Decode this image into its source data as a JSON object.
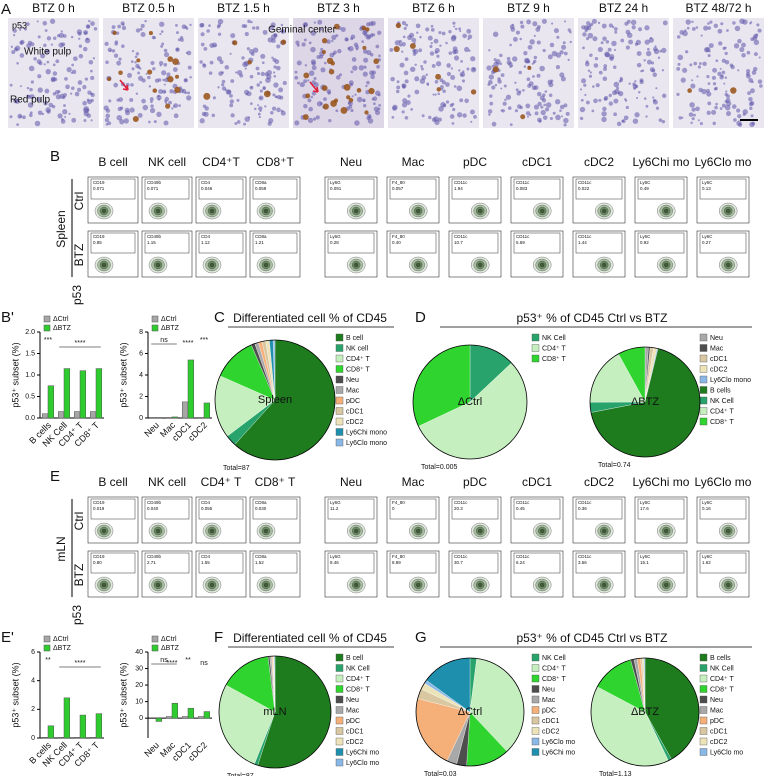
{
  "panel_a": {
    "letter": "A",
    "stain": "p53",
    "times": [
      "BTZ 0 h",
      "BTZ 0.5 h",
      "BTZ 1.5 h",
      "BTZ 3 h",
      "BTZ 6 h",
      "BTZ 9 h",
      "BTZ 24 h",
      "BTZ 48/72 h"
    ],
    "white_pulp": "White pulp",
    "red_pulp": "Red pulp",
    "germinal_center": "Geminal center"
  },
  "panel_b": {
    "letter": "B",
    "tissue": "Spleen",
    "marker": "p53",
    "rows": [
      "Ctrl",
      "BTZ"
    ],
    "populations": [
      {
        "name": "B cell",
        "gate": "CD19",
        "ctrl": "0.071",
        "btz": "0.85"
      },
      {
        "name": "NK cell",
        "gate": "CD49b",
        "ctrl": "0.071",
        "btz": "1.15"
      },
      {
        "name": "CD4⁺T",
        "gate": "CD4",
        "ctrl": "0.046",
        "btz": "1.12"
      },
      {
        "name": "CD8⁺T",
        "gate": "CD8a",
        "ctrl": "0.059",
        "btz": "1.21"
      },
      {
        "name": "Neu",
        "gate": "Ly6G",
        "ctrl": "0.091",
        "btz": "0.28"
      },
      {
        "name": "Mac",
        "gate": "F4_80",
        "ctrl": "0.057",
        "btz": "0.40"
      },
      {
        "name": "pDC",
        "gate": "CD11c",
        "ctrl": "1.94",
        "btz": "10.7"
      },
      {
        "name": "cDC1",
        "gate": "CD11c",
        "ctrl": "0.083",
        "btz": "5.69"
      },
      {
        "name": "cDC2",
        "gate": "CD11c",
        "ctrl": "0.022",
        "btz": "1.44"
      },
      {
        "name": "Ly6Chi mo",
        "gate": "Ly6C",
        "ctrl": "0.49",
        "btz": "0.92"
      },
      {
        "name": "Ly6Clo mo",
        "gate": "Ly6C",
        "ctrl": "0.13",
        "btz": "0.27"
      }
    ]
  },
  "panel_e": {
    "letter": "E",
    "tissue": "mLN",
    "marker": "p53",
    "rows": [
      "Ctrl",
      "BTZ"
    ],
    "populations": [
      {
        "name": "B cell",
        "gate": "CD19",
        "ctrl": "0.019",
        "btz": "0.80"
      },
      {
        "name": "NK cell",
        "gate": "CD49b",
        "ctrl": "0.040",
        "btz": "2.71"
      },
      {
        "name": "CD4⁺ T",
        "gate": "CD4",
        "ctrl": "0.055",
        "btz": "1.55"
      },
      {
        "name": "CD8⁺ T",
        "gate": "CD8a",
        "ctrl": "0.030",
        "btz": "1.52"
      },
      {
        "name": "Neu",
        "gate": "Ly6G",
        "ctrl": "11.2",
        "btz": "8.46"
      },
      {
        "name": "Mac",
        "gate": "F4_80",
        "ctrl": "0",
        "btz": "8.89"
      },
      {
        "name": "pDC",
        "gate": "CD11c",
        "ctrl": "20.3",
        "btz": "30.7"
      },
      {
        "name": "cDC1",
        "gate": "CD11c",
        "ctrl": "0.45",
        "btz": "6.24"
      },
      {
        "name": "cDC2",
        "gate": "CD11c",
        "ctrl": "0.36",
        "btz": "3.56"
      },
      {
        "name": "Ly6Chi mo",
        "gate": "Ly6C",
        "ctrl": "17.6",
        "btz": "15.1"
      },
      {
        "name": "Ly6Clo mo",
        "gate": "Ly6C",
        "ctrl": "0.16",
        "btz": "1.62"
      }
    ]
  },
  "panel_b_prime": {
    "letter": "B'",
    "charts": [
      {
        "y_label": "p53⁺ subset (%)",
        "categories": [
          "B cells",
          "NK Cell",
          "CD4⁺ T",
          "CD8⁺ T"
        ],
        "series": [
          {
            "name": "ΔCtrl",
            "color": "#a6a6a6",
            "values": [
              0.1,
              0.15,
              0.15,
              0.15
            ]
          },
          {
            "name": "ΔBTZ",
            "color": "#2ecc2e",
            "values": [
              0.75,
              1.15,
              1.1,
              1.15
            ]
          }
        ],
        "ylim": [
          0,
          2
        ],
        "yticks": [
          {
            "value": 0,
            "label": "0.0"
          },
          {
            "value": 0.5,
            "label": "0.5"
          },
          {
            "value": 1,
            "label": "1.0"
          },
          {
            "value": 1.5,
            "label": "1.5"
          },
          {
            "value": 2,
            "label": "2.0"
          }
        ],
        "annotations": [
          "***",
          "****"
        ]
      },
      {
        "y_label": "p53⁺ subset (%)",
        "categories": [
          "Neu",
          "Mac",
          "cDC1",
          "cDC2"
        ],
        "series": [
          {
            "name": "ΔCtrl",
            "color": "#a6a6a6",
            "values": [
              0.05,
              0.05,
              1.5,
              0.05
            ]
          },
          {
            "name": "ΔBTZ",
            "color": "#2ecc2e",
            "values": [
              0.05,
              0.1,
              5.4,
              1.4
            ]
          }
        ],
        "ylim": [
          0,
          8
        ],
        "yticks": [
          0,
          2,
          4,
          6,
          8
        ],
        "annotations": [
          "ns",
          "****",
          "***"
        ]
      }
    ]
  },
  "panel_e_prime": {
    "letter": "E'",
    "charts": [
      {
        "y_label": "p53⁺ subset (%)",
        "categories": [
          "B cells",
          "NK Cell",
          "CD4⁺ T",
          "CD8⁺ T"
        ],
        "series": [
          {
            "name": "ΔCtrl",
            "color": "#a6a6a6",
            "values": [
              0.05,
              0.05,
              0.05,
              0.05
            ]
          },
          {
            "name": "ΔBTZ",
            "color": "#2ecc2e",
            "values": [
              0.85,
              2.8,
              1.6,
              1.7
            ]
          }
        ],
        "ylim": [
          0,
          6
        ],
        "yticks": [
          0,
          2,
          4,
          6
        ],
        "annotations": [
          "**",
          "****"
        ]
      },
      {
        "y_label": "p53⁺ subset (%)",
        "categories": [
          "Neu",
          "Mac",
          "cDC1",
          "cDC2"
        ],
        "series": [
          {
            "name": "ΔCtrl",
            "color": "#a6a6a6",
            "values": [
              0,
              1,
              1,
              1
            ]
          },
          {
            "name": "ΔBTZ",
            "color": "#2ecc2e",
            "values": [
              -2,
              9,
              6,
              4
            ]
          }
        ],
        "ylim": [
          -12,
          40
        ],
        "yticks": [
          0,
          10,
          20,
          30,
          40
        ],
        "annotations": [
          "ns",
          "****",
          "**",
          "ns"
        ]
      }
    ]
  },
  "panel_c": {
    "letter": "C",
    "title": "Differentiated cell % of CD45",
    "pies": [
      {
        "center_label": "Spleen",
        "total": "Total=87",
        "labels": [
          "B cell",
          "NK cell",
          "CD4⁺ T",
          "CD8⁺ T",
          "Neu",
          "Mac",
          "pDC",
          "cDC1",
          "cDC2",
          "Ly6Chi mono",
          "Ly6Clo mono"
        ],
        "colors": [
          "#1e7b1e",
          "#27a36b",
          "#c6efc0",
          "#2fd42f",
          "#4d4d4d",
          "#a8a8a8",
          "#f5b07a",
          "#d8c7a0",
          "#ece3b8",
          "#1f8fae",
          "#8ab8e6"
        ],
        "values": [
          62,
          3,
          17,
          12,
          1,
          1,
          1,
          1,
          1,
          1,
          0.5
        ]
      }
    ]
  },
  "panel_d": {
    "letter": "D",
    "title": "p53⁺ % of CD45 Ctrl vs BTZ",
    "pies": [
      {
        "center_label": "ΔCtrl",
        "total": "Total=0.005",
        "labels": [
          "NK Cell",
          "CD4⁺ T",
          "CD8⁺ T"
        ],
        "colors": [
          "#27a36b",
          "#c6efc0",
          "#2fd42f"
        ],
        "values": [
          13,
          55,
          32
        ]
      },
      {
        "center_label": "ΔBTZ",
        "total": "Total=0.74",
        "labels": [
          "Neu",
          "Mac",
          "cDC1",
          "cDC2",
          "Ly6Clo mono",
          "B cells",
          "NK Cell",
          "CD4⁺ T",
          "CD8⁺ T"
        ],
        "colors": [
          "#a8a8a8",
          "#4d4d4d",
          "#d8c7a0",
          "#ece3b8",
          "#8ab8e6",
          "#1e7b1e",
          "#27a36b",
          "#c6efc0",
          "#2fd42f"
        ],
        "values": [
          1,
          0.5,
          1,
          1,
          0.3,
          68,
          3,
          17,
          8
        ]
      }
    ]
  },
  "panel_f": {
    "letter": "F",
    "title": "Differentiated cell % of CD45",
    "pies": [
      {
        "center_label": "mLN",
        "total": "Total=87",
        "labels": [
          "B cell",
          "NK Cell",
          "CD4⁺ T",
          "CD8⁺ T",
          "Neu",
          "Mac",
          "pDC",
          "cDC1",
          "cDC2",
          "Ly6Chi mo",
          "Ly6Clo mo"
        ],
        "colors": [
          "#1e7b1e",
          "#27a36b",
          "#c6efc0",
          "#2fd42f",
          "#4d4d4d",
          "#a8a8a8",
          "#f5b07a",
          "#d8c7a0",
          "#ece3b8",
          "#1f8fae",
          "#8ab8e6"
        ],
        "values": [
          55,
          1,
          27,
          15,
          0.5,
          0.5,
          0.3,
          0.2,
          0.2,
          0.2,
          0.1
        ]
      }
    ]
  },
  "panel_g": {
    "letter": "G",
    "title": "p53⁺ % of CD45 Ctrl vs BTZ",
    "pies": [
      {
        "center_label": "ΔCtrl",
        "total": "Total=0.03",
        "labels": [
          "NK Cell",
          "CD4⁺ T",
          "CD8⁺ T",
          "Neu",
          "Mac",
          "pDC",
          "cDC1",
          "cDC2",
          "Ly6Clo mo",
          "Ly6Chi mo"
        ],
        "colors": [
          "#27a36b",
          "#c6efc0",
          "#2fd42f",
          "#4d4d4d",
          "#a8a8a8",
          "#f5b07a",
          "#d8c7a0",
          "#ece3b8",
          "#8ab8e6",
          "#1f8fae"
        ],
        "values": [
          2,
          36,
          13,
          3,
          3,
          22,
          3,
          2,
          1,
          15
        ]
      },
      {
        "center_label": "ΔBTZ",
        "total": "Total=1.13",
        "labels": [
          "B cells",
          "NK Cell",
          "CD4⁺ T",
          "CD8⁺ T",
          "Neu",
          "Mac",
          "pDC",
          "cDC1",
          "cDC2",
          "Ly6Clo mo"
        ],
        "colors": [
          "#1e7b1e",
          "#27a36b",
          "#c6efc0",
          "#2fd42f",
          "#4d4d4d",
          "#a8a8a8",
          "#f5b07a",
          "#d8c7a0",
          "#ece3b8",
          "#8ab8e6"
        ],
        "values": [
          42,
          1,
          40,
          13,
          1,
          1,
          1,
          0.5,
          0.5,
          0.3
        ]
      }
    ]
  }
}
